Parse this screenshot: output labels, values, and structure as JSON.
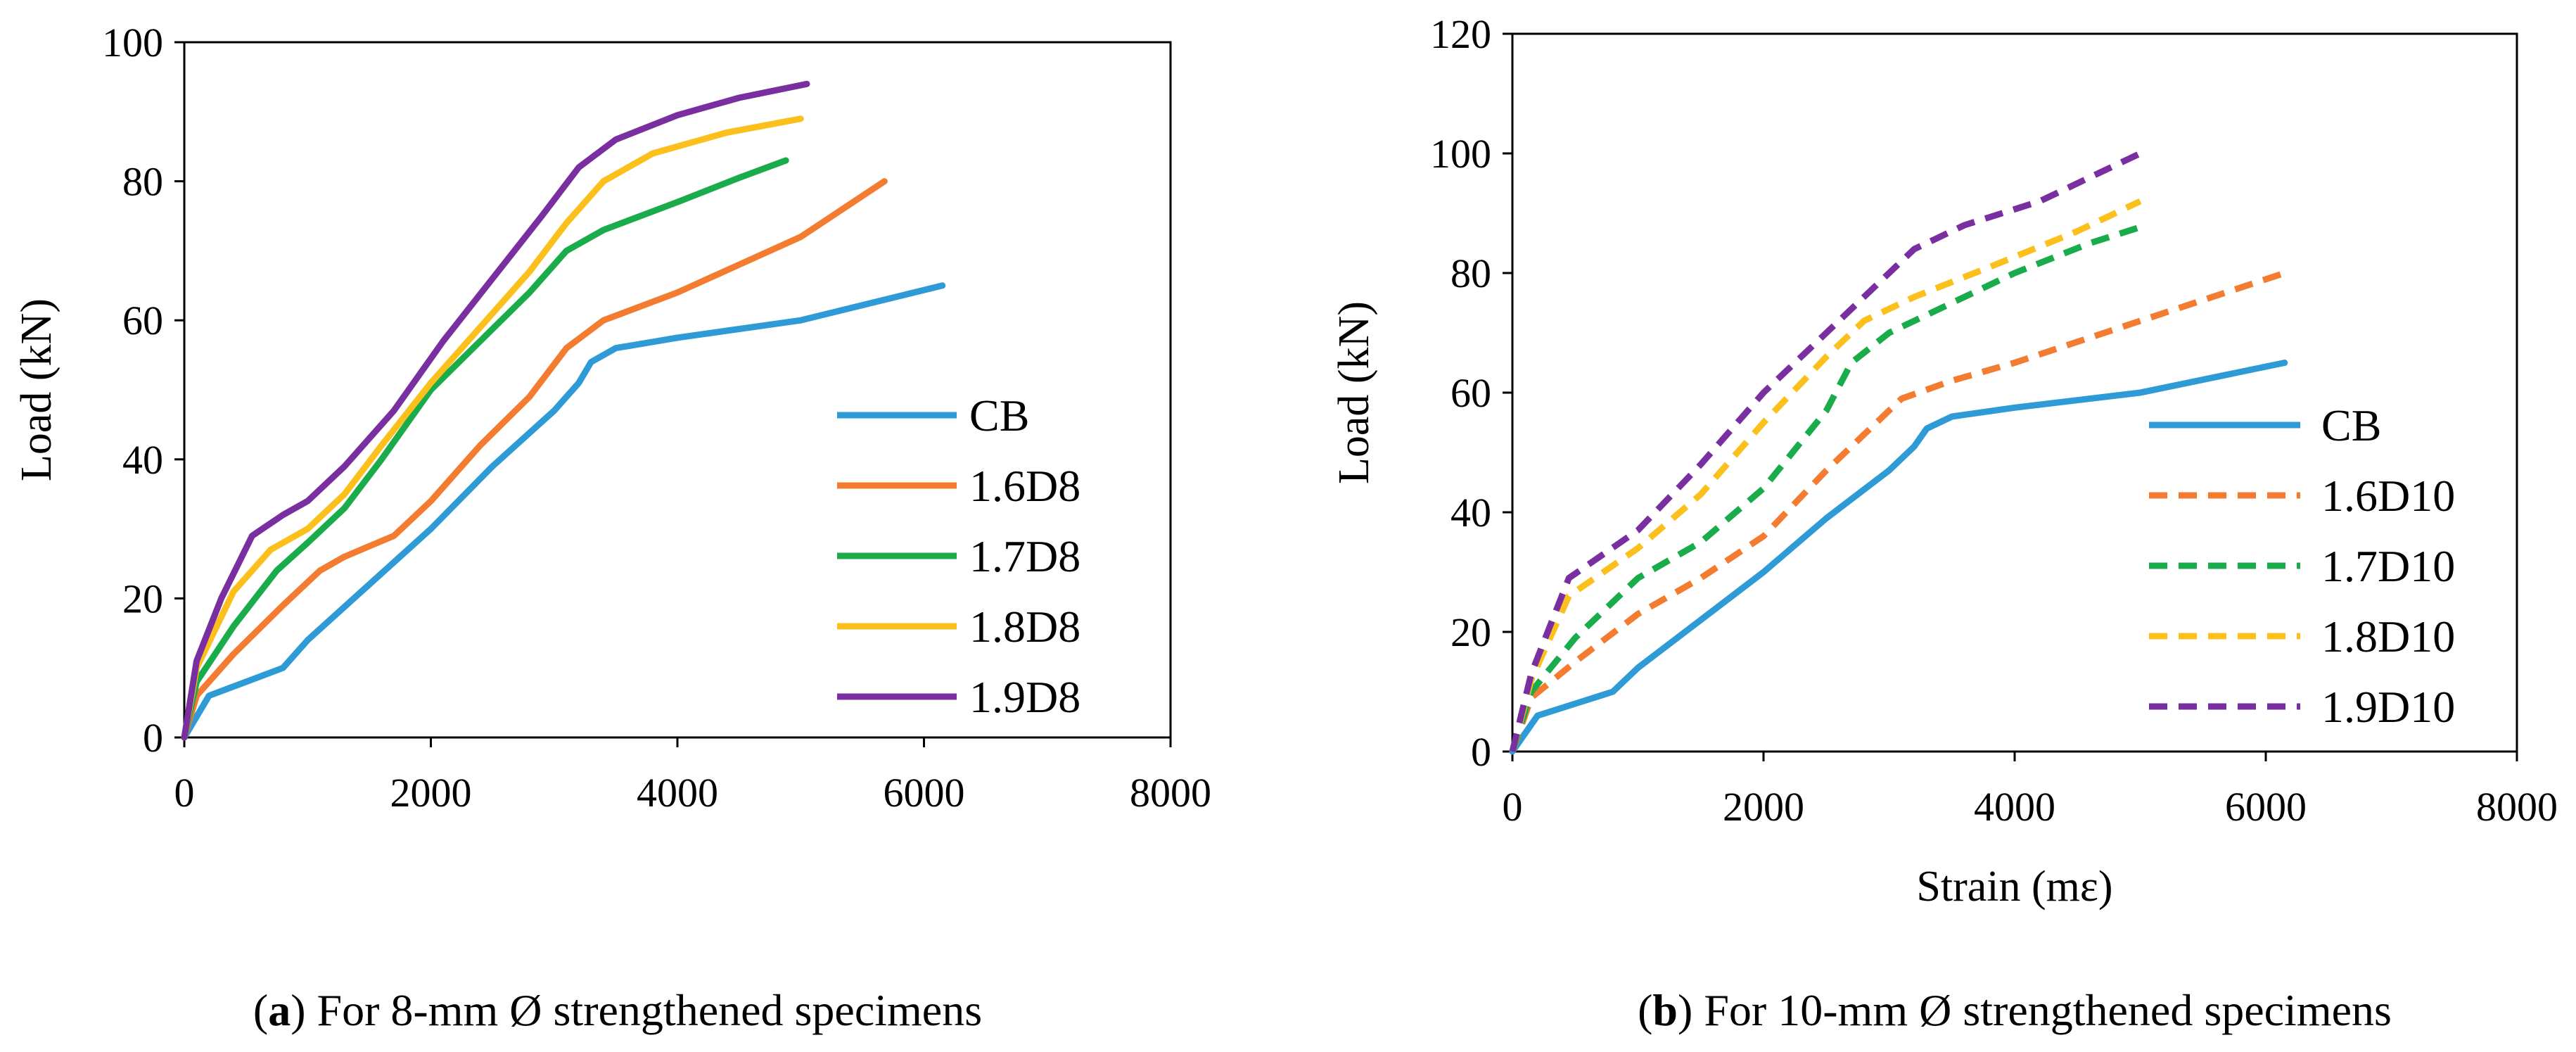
{
  "chart_data": [
    {
      "type": "line",
      "panel": "a",
      "caption": {
        "letter": "a",
        "text": " For 8-mm Ø strengthened specimens"
      },
      "xlabel": "",
      "ylabel": "Load (kN)",
      "xlim": [
        0,
        8000
      ],
      "ylim": [
        0,
        100
      ],
      "xticks": [
        0,
        2000,
        4000,
        6000,
        8000
      ],
      "yticks": [
        0,
        20,
        40,
        60,
        80,
        100
      ],
      "legend_position": "bottom-right",
      "series": [
        {
          "name": "CB",
          "color": "#2e9bd6",
          "dashed": false,
          "x": [
            0,
            200,
            500,
            800,
            1000,
            1500,
            2000,
            2500,
            3000,
            3200,
            3300,
            3500,
            4000,
            5000,
            6150
          ],
          "y": [
            0,
            6,
            8,
            10,
            14,
            22,
            30,
            39,
            47,
            51,
            54,
            56,
            57.5,
            60,
            65
          ]
        },
        {
          "name": "1.6D8",
          "color": "#f47c30",
          "dashed": false,
          "x": [
            0,
            100,
            400,
            800,
            1100,
            1300,
            1700,
            2000,
            2400,
            2800,
            3100,
            3400,
            4000,
            4500,
            5000,
            5680
          ],
          "y": [
            0,
            6,
            12,
            19,
            24,
            26,
            29,
            34,
            42,
            49,
            56,
            60,
            64,
            68,
            72,
            80
          ]
        },
        {
          "name": "1.7D8",
          "color": "#1aab4b",
          "dashed": false,
          "x": [
            0,
            100,
            400,
            750,
            1000,
            1300,
            1600,
            2000,
            2400,
            2800,
            3100,
            3400,
            4000,
            4500,
            4880
          ],
          "y": [
            0,
            8,
            16,
            24,
            28,
            33,
            40,
            50,
            57,
            64,
            70,
            73,
            77,
            80.5,
            83
          ]
        },
        {
          "name": "1.8D8",
          "color": "#fbc01c",
          "dashed": false,
          "x": [
            0,
            100,
            400,
            700,
            1000,
            1300,
            1600,
            2000,
            2400,
            2800,
            3100,
            3400,
            3800,
            4400,
            5000
          ],
          "y": [
            0,
            10,
            21,
            27,
            30,
            35,
            42,
            51,
            59,
            67,
            74,
            80,
            84,
            87,
            89
          ]
        },
        {
          "name": "1.9D8",
          "color": "#7a2fa0",
          "dashed": false,
          "x": [
            0,
            100,
            300,
            550,
            800,
            1000,
            1300,
            1700,
            2100,
            2500,
            2900,
            3200,
            3500,
            4000,
            4500,
            5050
          ],
          "y": [
            0,
            11,
            20,
            29,
            32,
            34,
            39,
            47,
            57,
            66,
            75,
            82,
            86,
            89.5,
            92,
            94
          ]
        }
      ]
    },
    {
      "type": "line",
      "panel": "b",
      "caption": {
        "letter": "b",
        "text": " For 10-mm Ø strengthened specimens"
      },
      "xlabel": "Strain (mε)",
      "ylabel": "Load (kN)",
      "xlim": [
        0,
        8000
      ],
      "ylim": [
        0,
        120
      ],
      "xticks": [
        0,
        2000,
        4000,
        6000,
        8000
      ],
      "yticks": [
        0,
        20,
        40,
        60,
        80,
        100,
        120
      ],
      "legend_position": "bottom-right",
      "series": [
        {
          "name": "CB",
          "color": "#2e9bd6",
          "dashed": false,
          "x": [
            0,
            200,
            500,
            800,
            1000,
            1500,
            2000,
            2500,
            3000,
            3200,
            3300,
            3500,
            4000,
            5000,
            6150
          ],
          "y": [
            0,
            6,
            8,
            10,
            14,
            22,
            30,
            39,
            47,
            51,
            54,
            56,
            57.5,
            60,
            65
          ]
        },
        {
          "name": "1.6D10",
          "color": "#f47c30",
          "dashed": true,
          "x": [
            0,
            150,
            500,
            1000,
            1500,
            2000,
            2500,
            2800,
            3100,
            3500,
            4000,
            5000,
            6150
          ],
          "y": [
            0,
            9,
            15,
            23,
            29,
            36,
            47,
            53,
            59,
            62,
            65,
            72,
            80
          ]
        },
        {
          "name": "1.7D10",
          "color": "#1aab4b",
          "dashed": true,
          "x": [
            0,
            150,
            500,
            1000,
            1500,
            2000,
            2500,
            2700,
            3000,
            3500,
            4000,
            4600,
            5050
          ],
          "y": [
            0,
            10,
            19,
            29,
            35,
            44,
            57,
            65,
            70,
            75,
            80,
            85,
            88
          ]
        },
        {
          "name": "1.8D10",
          "color": "#fbc01c",
          "dashed": true,
          "x": [
            0,
            150,
            450,
            1000,
            1500,
            2000,
            2500,
            2800,
            3200,
            3800,
            4500,
            5000
          ],
          "y": [
            0,
            12,
            26,
            34,
            43,
            55,
            66,
            72,
            76,
            81,
            87,
            92
          ]
        },
        {
          "name": "1.9D10",
          "color": "#7a2fa0",
          "dashed": true,
          "x": [
            0,
            150,
            450,
            1000,
            1500,
            2000,
            2500,
            3000,
            3200,
            3600,
            4200,
            5000
          ],
          "y": [
            0,
            13,
            29,
            37,
            48,
            60,
            70,
            80,
            84,
            88,
            92,
            100
          ]
        }
      ]
    }
  ]
}
